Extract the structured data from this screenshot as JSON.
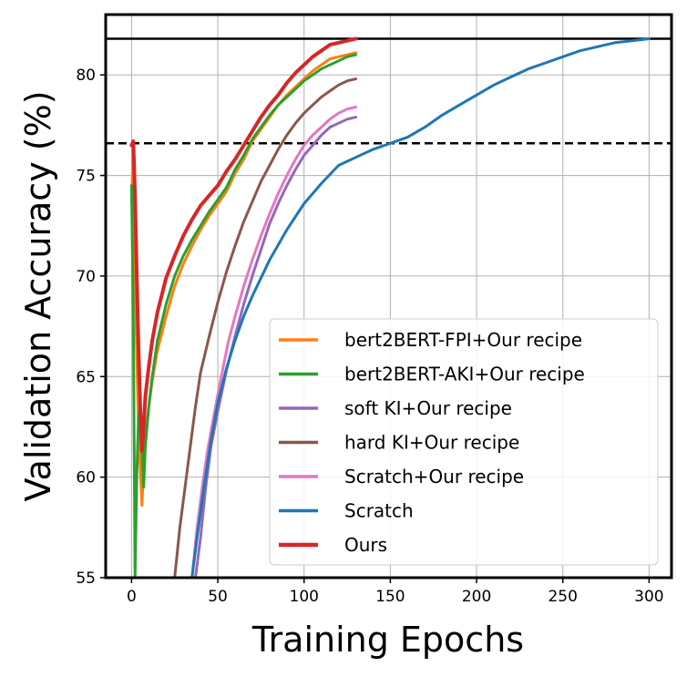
{
  "chart_data": {
    "type": "line",
    "xlabel": "Training Epochs",
    "ylabel": "Validation Accuracy (%)",
    "xlim": [
      -15,
      313
    ],
    "ylim": [
      55,
      83
    ],
    "xticks": [
      0,
      50,
      100,
      150,
      200,
      250,
      300
    ],
    "yticks": [
      55,
      60,
      65,
      70,
      75,
      80
    ],
    "grid": true,
    "legend_position": "bottom-right",
    "hlines": [
      {
        "y": 81.8,
        "style": "solid",
        "color": "#000000"
      },
      {
        "y": 76.6,
        "style": "dashed",
        "color": "#000000"
      }
    ],
    "series": [
      {
        "name": "bert2BERT-FPI+Our recipe",
        "color": "#ff7f0e",
        "width": 3,
        "points": [
          [
            0,
            73.7
          ],
          [
            1,
            76.4
          ],
          [
            2,
            70.5
          ],
          [
            3,
            66
          ],
          [
            4,
            62.5
          ],
          [
            5,
            60.5
          ],
          [
            6,
            58.6
          ],
          [
            7,
            60.5
          ],
          [
            8,
            62
          ],
          [
            10,
            63.5
          ],
          [
            12,
            64.8
          ],
          [
            15,
            66.3
          ],
          [
            20,
            68
          ],
          [
            25,
            69.5
          ],
          [
            30,
            70.6
          ],
          [
            35,
            71.5
          ],
          [
            40,
            72.3
          ],
          [
            45,
            73
          ],
          [
            50,
            73.6
          ],
          [
            55,
            74.2
          ],
          [
            60,
            75.1
          ],
          [
            65,
            75.8
          ],
          [
            70,
            76.7
          ],
          [
            75,
            77.3
          ],
          [
            80,
            77.9
          ],
          [
            85,
            78.5
          ],
          [
            90,
            79
          ],
          [
            95,
            79.4
          ],
          [
            100,
            79.8
          ],
          [
            105,
            80.2
          ],
          [
            110,
            80.5
          ],
          [
            115,
            80.8
          ],
          [
            120,
            80.9
          ],
          [
            125,
            81
          ],
          [
            130,
            81.1
          ]
        ]
      },
      {
        "name": "bert2BERT-AKI+Our recipe",
        "color": "#2ca02c",
        "width": 3,
        "points": [
          [
            0,
            74.5
          ],
          [
            1,
            68
          ],
          [
            2,
            55
          ],
          [
            3,
            60
          ],
          [
            4,
            63
          ],
          [
            5,
            63.5
          ],
          [
            6,
            61.5
          ],
          [
            7,
            59.5
          ],
          [
            8,
            61.5
          ],
          [
            10,
            63.5
          ],
          [
            12,
            65
          ],
          [
            15,
            66.8
          ],
          [
            20,
            68.6
          ],
          [
            25,
            70
          ],
          [
            30,
            71
          ],
          [
            35,
            71.8
          ],
          [
            40,
            72.5
          ],
          [
            45,
            73.2
          ],
          [
            50,
            73.8
          ],
          [
            55,
            74.4
          ],
          [
            60,
            75.3
          ],
          [
            65,
            76
          ],
          [
            70,
            76.8
          ],
          [
            75,
            77.4
          ],
          [
            80,
            78
          ],
          [
            85,
            78.5
          ],
          [
            90,
            78.9
          ],
          [
            95,
            79.3
          ],
          [
            100,
            79.7
          ],
          [
            105,
            80
          ],
          [
            110,
            80.3
          ],
          [
            115,
            80.5
          ],
          [
            120,
            80.7
          ],
          [
            125,
            80.9
          ],
          [
            130,
            81
          ]
        ]
      },
      {
        "name": "soft KI+Our recipe",
        "color": "#9467bd",
        "width": 3,
        "points": [
          [
            37,
            55
          ],
          [
            40,
            57
          ],
          [
            43,
            59.5
          ],
          [
            46,
            61.5
          ],
          [
            50,
            63.3
          ],
          [
            55,
            65.3
          ],
          [
            60,
            67
          ],
          [
            65,
            68.6
          ],
          [
            70,
            70
          ],
          [
            75,
            71.3
          ],
          [
            80,
            72.6
          ],
          [
            85,
            73.6
          ],
          [
            90,
            74.5
          ],
          [
            95,
            75.3
          ],
          [
            100,
            76
          ],
          [
            105,
            76.5
          ],
          [
            110,
            77
          ],
          [
            115,
            77.4
          ],
          [
            120,
            77.6
          ],
          [
            125,
            77.8
          ],
          [
            130,
            77.9
          ]
        ]
      },
      {
        "name": "hard KI+Our recipe",
        "color": "#8c564b",
        "width": 3,
        "points": [
          [
            25,
            55
          ],
          [
            28,
            57.5
          ],
          [
            31,
            59.5
          ],
          [
            34,
            61.5
          ],
          [
            37,
            63.5
          ],
          [
            40,
            65.2
          ],
          [
            45,
            67
          ],
          [
            50,
            68.7
          ],
          [
            55,
            70.2
          ],
          [
            60,
            71.5
          ],
          [
            65,
            72.7
          ],
          [
            70,
            73.7
          ],
          [
            75,
            74.7
          ],
          [
            80,
            75.5
          ],
          [
            85,
            76.3
          ],
          [
            90,
            77
          ],
          [
            95,
            77.6
          ],
          [
            100,
            78.1
          ],
          [
            105,
            78.5
          ],
          [
            110,
            78.9
          ],
          [
            115,
            79.2
          ],
          [
            120,
            79.5
          ],
          [
            125,
            79.7
          ],
          [
            130,
            79.8
          ]
        ]
      },
      {
        "name": "Scratch+Our recipe",
        "color": "#e377c2",
        "width": 3,
        "points": [
          [
            35,
            55
          ],
          [
            38,
            57.5
          ],
          [
            41,
            59.5
          ],
          [
            44,
            61.3
          ],
          [
            48,
            63.2
          ],
          [
            52,
            65
          ],
          [
            56,
            66.7
          ],
          [
            60,
            68
          ],
          [
            65,
            69.5
          ],
          [
            70,
            70.8
          ],
          [
            75,
            72
          ],
          [
            80,
            73.1
          ],
          [
            85,
            74.1
          ],
          [
            90,
            75
          ],
          [
            95,
            75.8
          ],
          [
            100,
            76.5
          ],
          [
            105,
            77
          ],
          [
            110,
            77.4
          ],
          [
            115,
            77.8
          ],
          [
            120,
            78.1
          ],
          [
            125,
            78.3
          ],
          [
            130,
            78.4
          ]
        ]
      },
      {
        "name": "Scratch",
        "color": "#1f77b4",
        "width": 3,
        "points": [
          [
            35,
            55
          ],
          [
            38,
            57
          ],
          [
            42,
            59.5
          ],
          [
            46,
            61.8
          ],
          [
            50,
            63.7
          ],
          [
            55,
            65.4
          ],
          [
            60,
            66.8
          ],
          [
            65,
            68
          ],
          [
            70,
            69
          ],
          [
            80,
            70.8
          ],
          [
            90,
            72.3
          ],
          [
            100,
            73.6
          ],
          [
            110,
            74.6
          ],
          [
            120,
            75.5
          ],
          [
            130,
            75.9
          ],
          [
            140,
            76.3
          ],
          [
            150,
            76.6
          ],
          [
            160,
            76.9
          ],
          [
            170,
            77.4
          ],
          [
            180,
            78
          ],
          [
            190,
            78.5
          ],
          [
            200,
            79
          ],
          [
            210,
            79.5
          ],
          [
            220,
            79.9
          ],
          [
            230,
            80.3
          ],
          [
            240,
            80.6
          ],
          [
            250,
            80.9
          ],
          [
            260,
            81.2
          ],
          [
            270,
            81.4
          ],
          [
            280,
            81.6
          ],
          [
            290,
            81.7
          ],
          [
            300,
            81.8
          ]
        ]
      },
      {
        "name": "Ours",
        "color": "#d62728",
        "width": 4,
        "points": [
          [
            0,
            76.5
          ],
          [
            1,
            76.7
          ],
          [
            2,
            74
          ],
          [
            3,
            70
          ],
          [
            4,
            66.5
          ],
          [
            5,
            63.5
          ],
          [
            6,
            61.3
          ],
          [
            7,
            62.5
          ],
          [
            8,
            64
          ],
          [
            10,
            65.5
          ],
          [
            12,
            66.8
          ],
          [
            15,
            68.2
          ],
          [
            20,
            69.9
          ],
          [
            25,
            71
          ],
          [
            30,
            72
          ],
          [
            35,
            72.8
          ],
          [
            40,
            73.5
          ],
          [
            45,
            74
          ],
          [
            50,
            74.5
          ],
          [
            55,
            75.2
          ],
          [
            60,
            75.8
          ],
          [
            65,
            76.5
          ],
          [
            70,
            77.2
          ],
          [
            75,
            77.9
          ],
          [
            80,
            78.5
          ],
          [
            85,
            79
          ],
          [
            90,
            79.6
          ],
          [
            95,
            80.1
          ],
          [
            100,
            80.5
          ],
          [
            105,
            80.9
          ],
          [
            110,
            81.2
          ],
          [
            115,
            81.5
          ],
          [
            120,
            81.6
          ],
          [
            125,
            81.7
          ],
          [
            130,
            81.8
          ]
        ]
      }
    ]
  }
}
